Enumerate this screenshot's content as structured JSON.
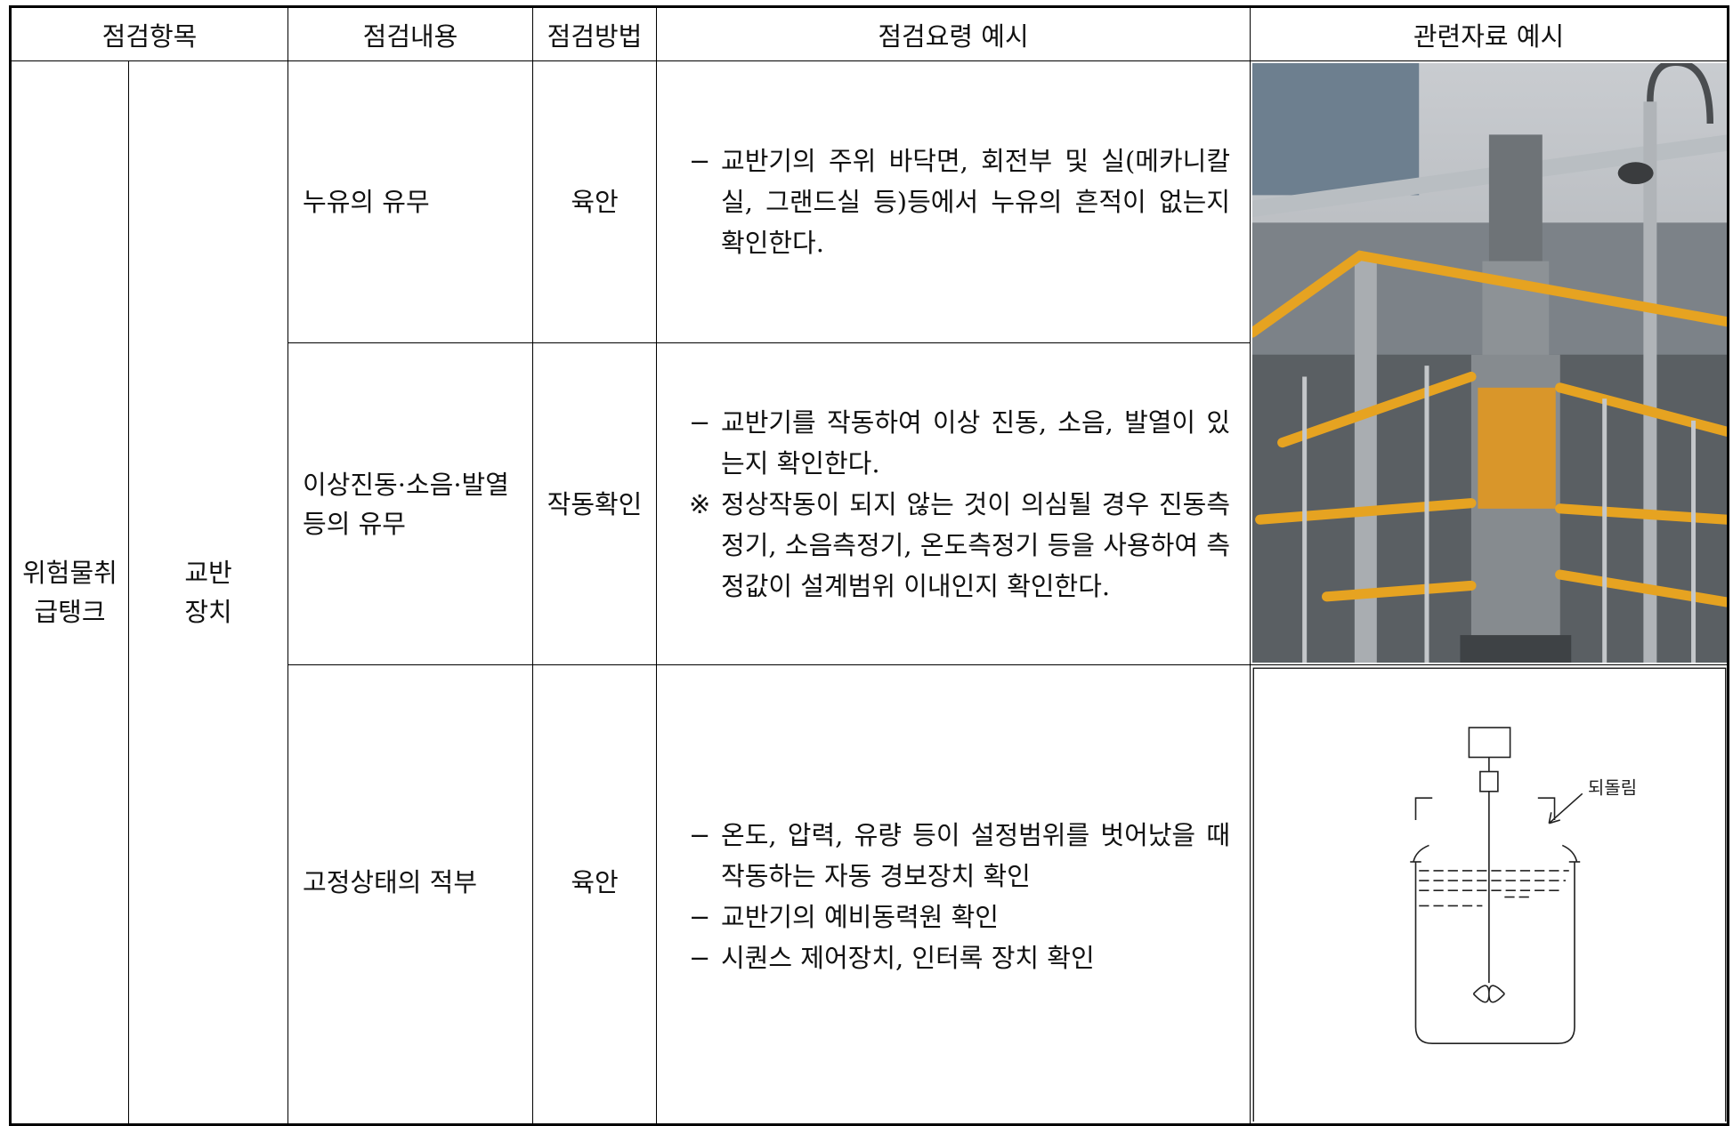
{
  "header": [
    "점검항목",
    "점검내용",
    "점검방법",
    "점검요령 예시",
    "관련자료 예시"
  ],
  "category": [
    "위험물취",
    "급탱크"
  ],
  "subcategory": [
    "교반",
    "장치"
  ],
  "rows": [
    {
      "content": "누유의 유무",
      "method": "육안",
      "guide": [
        {
          "mark": "−",
          "text": "교반기의 주위 바닥면, 회전부 및 실(메카니칼실, 그랜드실 등)등에서 누유의 흔적이 없는지 확인한다."
        }
      ]
    },
    {
      "content": "이상진동·소음·발열 등의 유무",
      "method": "작동확인",
      "guide": [
        {
          "mark": "−",
          "text": "교반기를 작동하여 이상 진동, 소음, 발열이 있는지 확인한다."
        },
        {
          "mark": "※",
          "text": "정상작동이 되지 않는 것이 의심될 경우 진동측정기, 소음측정기, 온도측정기 등을 사용하여 측정값이 설계범위 이내인지 확인한다."
        }
      ]
    },
    {
      "content": "고정상태의 적부",
      "method": "육안",
      "guide": [
        {
          "mark": "−",
          "text": "온도, 압력, 유량 등이 설정범위를 벗어났을 때 작동하는 자동 경보장치 확인"
        },
        {
          "mark": "−",
          "text": "교반기의 예비동력원 확인"
        },
        {
          "mark": "−",
          "text": "시퀀스 제어장치, 인터록 장치 확인"
        }
      ]
    }
  ],
  "diagram_label": "되돌림"
}
